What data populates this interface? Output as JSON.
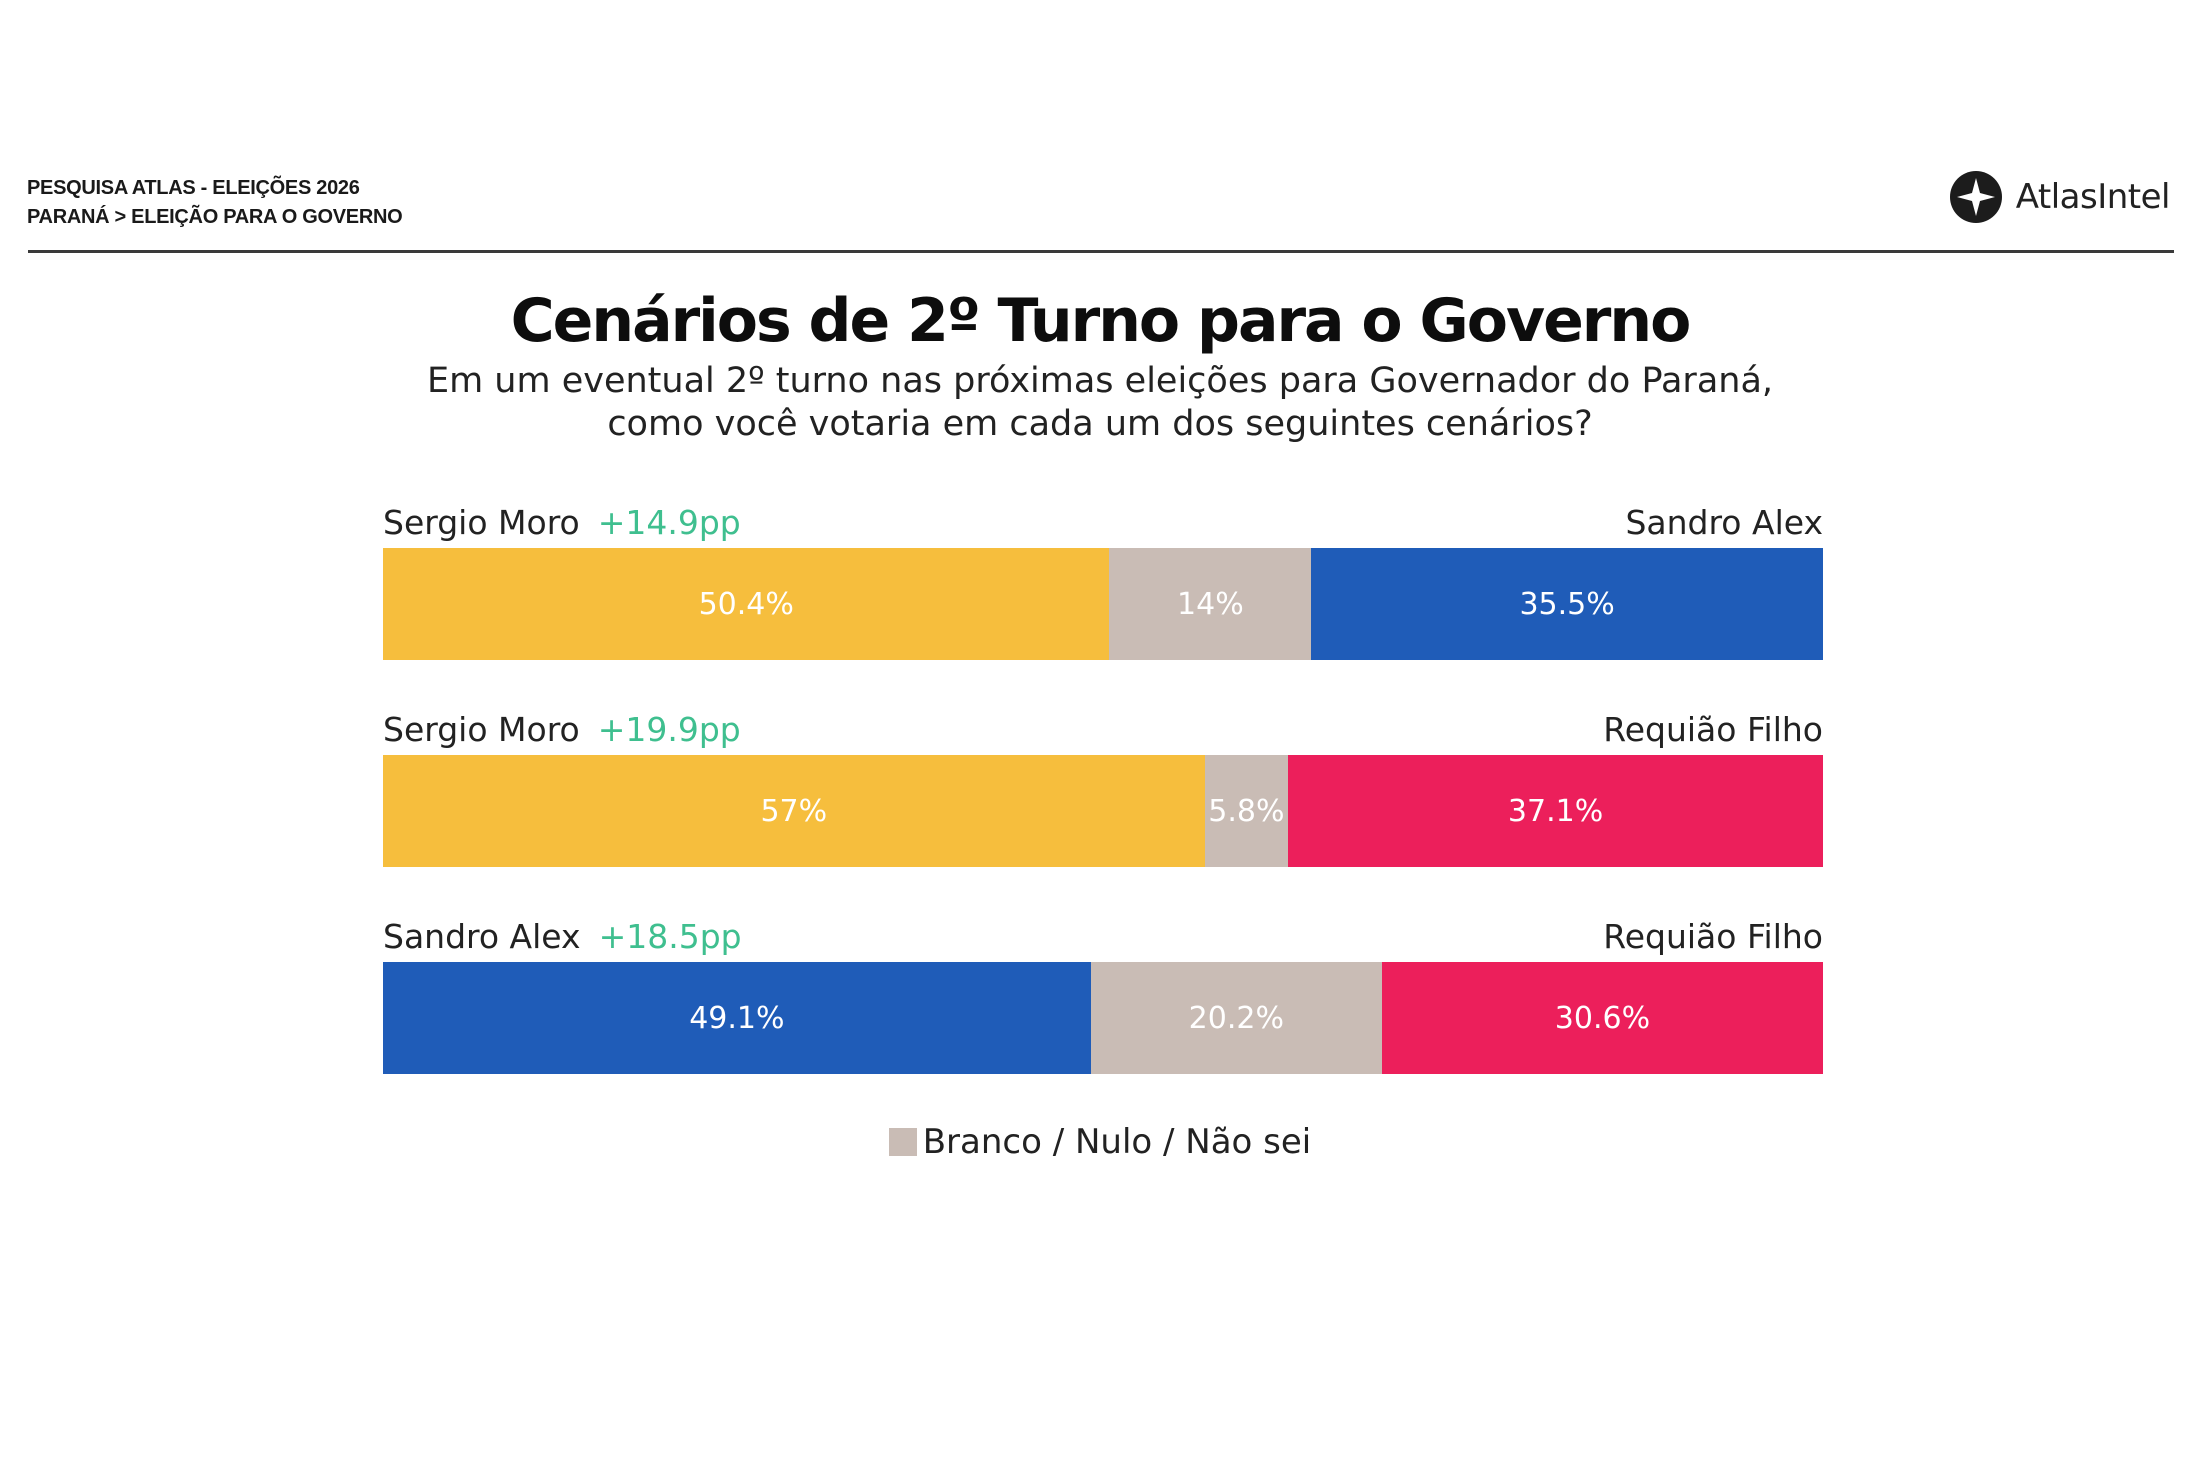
{
  "header": {
    "line1": "PESQUISA ATLAS - ELEIÇÕES 2026",
    "line2": "PARANÁ > ELEIÇÃO PARA O GOVERNO",
    "logo_text": "AtlasIntel"
  },
  "title": "Cenários de 2º Turno para o Governo",
  "subtitle_line1": "Em um eventual 2º turno nas próximas eleições para Governador do Paraná,",
  "subtitle_line2": "como você votaria em cada um dos seguintes cenários?",
  "legend": {
    "label": "Branco / Nulo / Não sei",
    "color": "#c9bcb5"
  },
  "colors": {
    "Sergio Moro": "#f6be3d",
    "Sandro Alex": "#1f5cb8",
    "Requião Filho": "#ec1f5b",
    "blank": "#c9bcb5",
    "margin": "#3fbf8f"
  },
  "chart_data": {
    "type": "bar",
    "orientation": "horizontal",
    "stacked": true,
    "xlim": [
      0,
      100
    ],
    "scenarios": [
      {
        "left": "Sergio Moro",
        "margin": "+14.9pp",
        "right": "Sandro Alex",
        "segments": [
          {
            "name": "Sergio Moro",
            "value": 50.4,
            "label": "50.4%"
          },
          {
            "name": "Branco / Nulo / Não sei",
            "value": 14,
            "label": "14%"
          },
          {
            "name": "Sandro Alex",
            "value": 35.5,
            "label": "35.5%"
          }
        ]
      },
      {
        "left": "Sergio Moro",
        "margin": "+19.9pp",
        "right": "Requião Filho",
        "segments": [
          {
            "name": "Sergio Moro",
            "value": 57,
            "label": "57%"
          },
          {
            "name": "Branco / Nulo / Não sei",
            "value": 5.8,
            "label": "5.8%"
          },
          {
            "name": "Requião Filho",
            "value": 37.1,
            "label": "37.1%"
          }
        ]
      },
      {
        "left": "Sandro Alex",
        "margin": "+18.5pp",
        "right": "Requião Filho",
        "segments": [
          {
            "name": "Sandro Alex",
            "value": 49.1,
            "label": "49.1%"
          },
          {
            "name": "Branco / Nulo / Não sei",
            "value": 20.2,
            "label": "20.2%"
          },
          {
            "name": "Requião Filho",
            "value": 30.6,
            "label": "30.6%"
          }
        ]
      }
    ]
  }
}
